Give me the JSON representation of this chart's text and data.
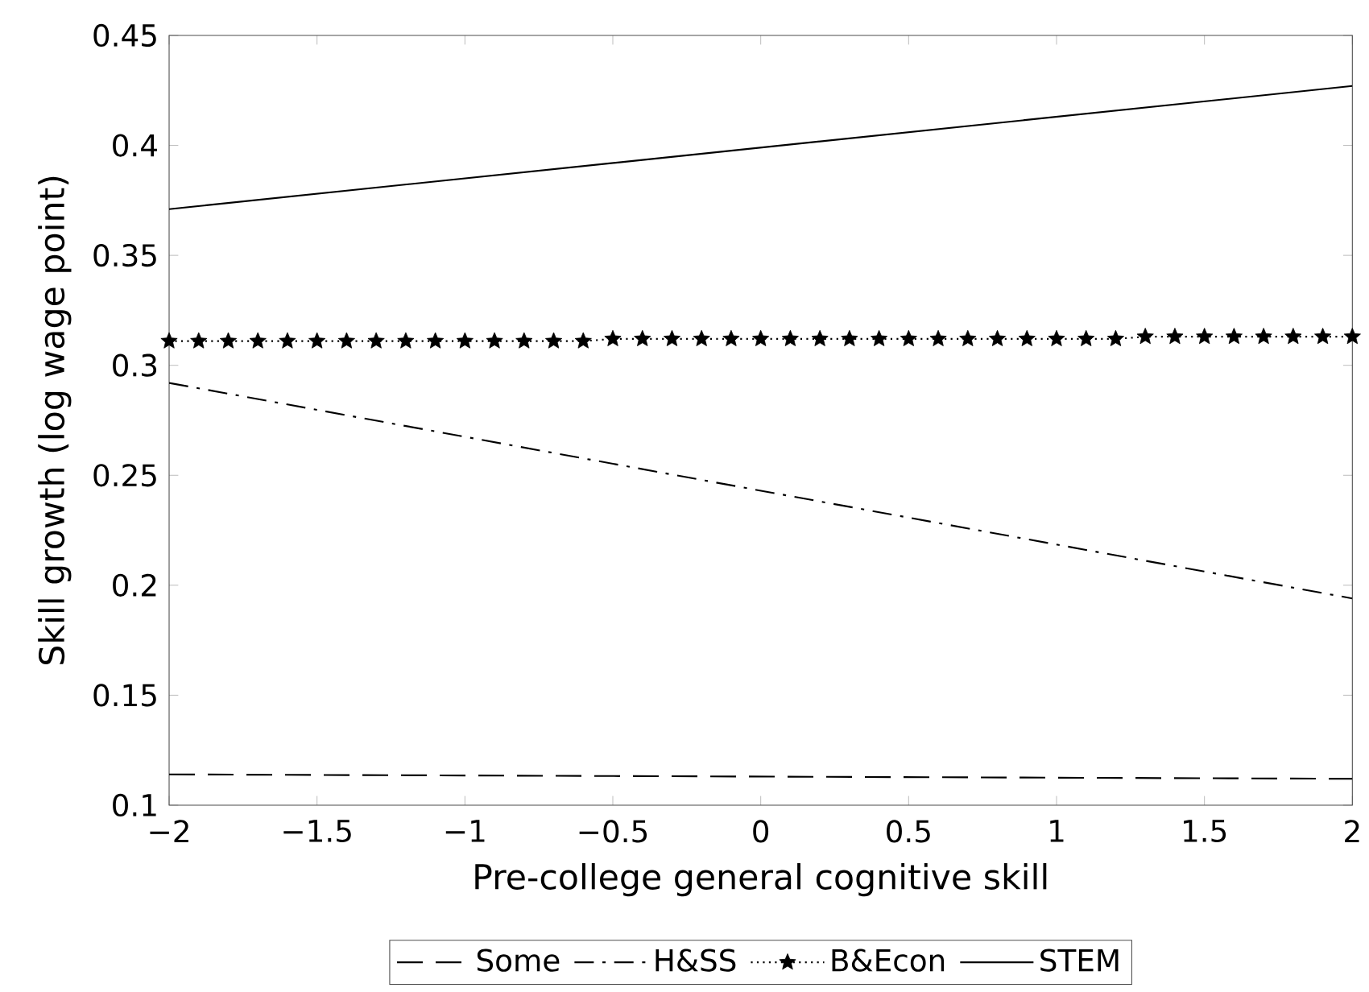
{
  "chart_data": {
    "type": "line",
    "xlabel": "Pre-college general cognitive skill",
    "ylabel": "Skill growth (log wage point)",
    "xlim": [
      -2,
      2
    ],
    "ylim": [
      0.1,
      0.45
    ],
    "xticks": [
      {
        "value": -2,
        "label": "−2"
      },
      {
        "value": -1.5,
        "label": "−1.5"
      },
      {
        "value": -1,
        "label": "−1"
      },
      {
        "value": -0.5,
        "label": "−0.5"
      },
      0,
      0.5,
      1,
      1.5,
      2
    ],
    "yticks": [
      0.1,
      0.15,
      0.2,
      0.25,
      0.3,
      0.35,
      0.4,
      0.45
    ],
    "grid": false,
    "legend": "bottom",
    "series": [
      {
        "name": "Some",
        "color": "#000000",
        "line_style": "dashed",
        "marker": "none",
        "x": [
          -2,
          2
        ],
        "values": [
          0.114,
          0.112
        ]
      },
      {
        "name": "H&SS",
        "color": "#000000",
        "line_style": "dashdot",
        "marker": "none",
        "x": [
          -2,
          2
        ],
        "values": [
          0.292,
          0.194
        ]
      },
      {
        "name": "B&Econ",
        "color": "#000000",
        "line_style": "dotted",
        "marker": "star",
        "x": [
          -2,
          -1.9,
          -1.8,
          -1.7,
          -1.6,
          -1.5,
          -1.4,
          -1.3,
          -1.2,
          -1.1,
          -1,
          -0.9,
          -0.8,
          -0.7,
          -0.6,
          -0.5,
          -0.4,
          -0.3,
          -0.2,
          -0.1,
          0,
          0.1,
          0.2,
          0.3,
          0.4,
          0.5,
          0.6,
          0.7,
          0.8,
          0.9,
          1,
          1.1,
          1.2,
          1.3,
          1.4,
          1.5,
          1.6,
          1.7,
          1.8,
          1.9,
          2
        ],
        "values": [
          0.311,
          0.311,
          0.311,
          0.311,
          0.311,
          0.311,
          0.311,
          0.311,
          0.311,
          0.311,
          0.311,
          0.311,
          0.311,
          0.311,
          0.311,
          0.312,
          0.312,
          0.312,
          0.312,
          0.312,
          0.312,
          0.312,
          0.312,
          0.312,
          0.312,
          0.312,
          0.312,
          0.312,
          0.312,
          0.312,
          0.312,
          0.312,
          0.312,
          0.313,
          0.313,
          0.313,
          0.313,
          0.313,
          0.313,
          0.313,
          0.313
        ]
      },
      {
        "name": "STEM",
        "color": "#000000",
        "line_style": "solid",
        "marker": "none",
        "x": [
          -2,
          2
        ],
        "values": [
          0.371,
          0.427
        ]
      }
    ]
  }
}
